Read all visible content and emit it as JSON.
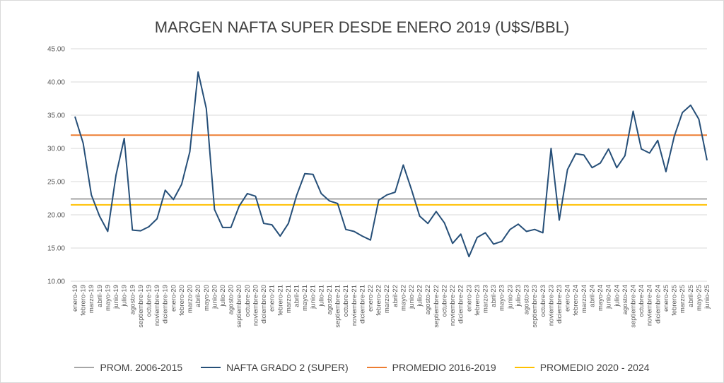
{
  "chart_data": {
    "type": "line",
    "title": "MARGEN NAFTA SUPER DESDE ENERO 2019 (U$S/BBL)",
    "ylim": [
      10,
      45
    ],
    "yticks": [
      "10.00",
      "15.00",
      "20.00",
      "25.00",
      "30.00",
      "35.00",
      "40.00",
      "45.00"
    ],
    "grid": "horizontal",
    "legend_position": "bottom",
    "categories": [
      "enero-19",
      "febrero-19",
      "marzo-19",
      "abril-19",
      "mayo-19",
      "junio-19",
      "julio-19",
      "agosto-19",
      "septiembre-19",
      "octubre-19",
      "noviembre-19",
      "diciembre-19",
      "enero-20",
      "febrero-20",
      "marzo-20",
      "abril-20",
      "mayo-20",
      "junio-20",
      "julio-20",
      "agosto-20",
      "septiembre-20",
      "octubre-20",
      "noviembre-20",
      "diciembre-20",
      "enero-21",
      "febrero-21",
      "marzo-21",
      "abril-21",
      "mayo-21",
      "junio-21",
      "julio-21",
      "agosto-21",
      "septiembre-21",
      "octubre-21",
      "noviembre-21",
      "diciembre-21",
      "enero-22",
      "febrero-22",
      "marzo-22",
      "abril-22",
      "mayo-22",
      "junio-22",
      "julio-22",
      "agosto-22",
      "septiembre-22",
      "octubre-22",
      "noviembre-22",
      "diciembre-22",
      "enero-23",
      "febrero-23",
      "marzo-23",
      "abril-23",
      "mayo-23",
      "junio-23",
      "julio-23",
      "agosto-23",
      "septiembre-23",
      "octubre-23",
      "noviembre-23",
      "diciembre-23",
      "enero-24",
      "febrero-24",
      "marzo-24",
      "abril-24",
      "mayo-24",
      "junio-24",
      "julio-24",
      "agosto-24",
      "septiembre-24",
      "octubre-24",
      "noviembre-24",
      "diciembre-24",
      "enero-25",
      "febrero-25",
      "marzo-25",
      "abril-25",
      "mayo-25",
      "junio-25"
    ],
    "series": [
      {
        "name": "PROM. 2006-2015",
        "color": "#a6a6a6",
        "kind": "constant",
        "value": 22.4
      },
      {
        "name": "NAFTA GRADO 2 (SUPER)",
        "color": "#264f78",
        "kind": "line",
        "values": [
          34.8,
          30.8,
          23.0,
          19.8,
          17.5,
          26.0,
          31.5,
          17.7,
          17.6,
          18.2,
          19.4,
          23.7,
          22.3,
          24.6,
          29.5,
          41.5,
          36.0,
          20.8,
          18.1,
          18.1,
          21.3,
          23.2,
          22.8,
          18.7,
          18.5,
          16.8,
          18.7,
          22.9,
          26.2,
          26.1,
          23.2,
          22.1,
          21.7,
          17.8,
          17.5,
          16.8,
          16.2,
          22.2,
          23.0,
          23.4,
          27.5,
          23.8,
          19.8,
          18.7,
          20.5,
          18.8,
          15.7,
          17.1,
          13.7,
          16.6,
          17.3,
          15.6,
          16.0,
          17.8,
          18.6,
          17.5,
          17.8,
          17.3,
          30.0,
          19.2,
          26.8,
          29.2,
          29.0,
          27.1,
          27.8,
          29.9,
          27.1,
          28.9,
          35.6,
          29.9,
          29.3,
          31.2,
          26.5,
          31.8,
          35.4,
          36.5,
          34.4,
          28.2
        ]
      },
      {
        "name": "PROMEDIO 2016-2019",
        "color": "#ed7d31",
        "kind": "constant",
        "value": 32.0
      },
      {
        "name": "PROMEDIO 2020 - 2024",
        "color": "#ffc000",
        "kind": "constant",
        "value": 21.5
      }
    ]
  }
}
